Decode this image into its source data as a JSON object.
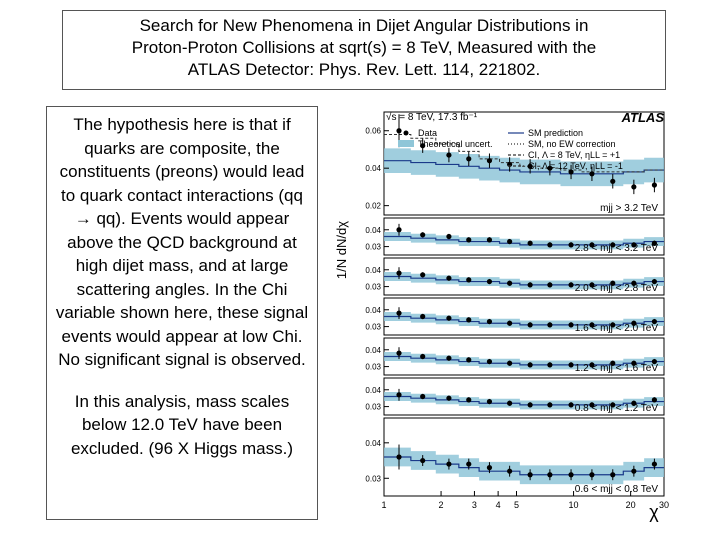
{
  "title": {
    "line1": "Search for New Phenomena in Dijet Angular Distributions in",
    "line2": "Proton-Proton Collisions at sqrt(s) = 8 TeV, Measured with the",
    "line3": "ATLAS Detector:  Phys. Rev. Lett. 114, 221802."
  },
  "description": {
    "paragraph1": "The hypothesis here is that if quarks are composite, the constituents (preons) would lead to quark contact interactions (qq → qq). Events would appear above the QCD background at high dijet mass, and at large scattering angles.  In the Chi variable shown here, these signal events would appear at low Chi. No significant signal is observed.",
    "paragraph2": "In this analysis, mass scales below 12.0 TeV have been excluded. (96 X Higgs mass.)"
  },
  "chart_data": {
    "type": "scatter",
    "ylabel": "1/N dN/dχ",
    "xlabel": "χ",
    "header": "√s = 8 TeV, 17.3 fb⁻¹",
    "experiment": "ATLAS",
    "x_ticks": [
      "1",
      "2",
      "3",
      "4",
      "5",
      "10",
      "20",
      "30"
    ],
    "x": [
      1.2,
      1.6,
      2.2,
      2.8,
      3.6,
      4.6,
      5.9,
      7.5,
      9.7,
      12.5,
      16.1,
      20.8,
      26.7
    ],
    "legend": [
      {
        "key": "data",
        "label": "Data"
      },
      {
        "key": "theory_unc",
        "label": "Theoretical uncert."
      },
      {
        "key": "sm_prediction",
        "label": "SM prediction"
      },
      {
        "key": "sm_no_ew",
        "label": "SM, no EW correction"
      },
      {
        "key": "ci_8_plus",
        "label": "CI, Λ = 8 TeV, ηLL = +1"
      },
      {
        "key": "ci_12_minus",
        "label": "CI, Λ = 12 TeV, ηLL = -1"
      }
    ],
    "panels": [
      {
        "label": "mjj > 3.2 TeV",
        "y_ticks": [
          "0.02",
          "0.04",
          "0.06"
        ],
        "ylim": [
          0.015,
          0.07
        ],
        "data": [
          0.06,
          0.052,
          0.047,
          0.045,
          0.044,
          0.042,
          0.041,
          0.04,
          0.038,
          0.037,
          0.033,
          0.03,
          0.031
        ],
        "prediction": [
          0.044,
          0.043,
          0.042,
          0.041,
          0.04,
          0.039,
          0.038,
          0.038,
          0.037,
          0.037,
          0.037,
          0.038,
          0.039
        ],
        "ci": [
          0.058,
          0.056,
          0.053,
          0.049,
          0.045,
          0.043,
          0.041,
          0.04,
          0.039,
          0.038,
          0.038,
          0.038,
          0.039
        ]
      },
      {
        "label": "2.8 < mjj < 3.2 TeV",
        "y_ticks": [
          "0.03",
          "0.04"
        ],
        "ylim": [
          0.025,
          0.047
        ],
        "data": [
          0.04,
          0.037,
          0.036,
          0.034,
          0.034,
          0.033,
          0.032,
          0.031,
          0.031,
          0.031,
          0.031,
          0.031,
          0.032
        ],
        "prediction": [
          0.036,
          0.035,
          0.034,
          0.033,
          0.033,
          0.032,
          0.031,
          0.031,
          0.031,
          0.031,
          0.031,
          0.032,
          0.033
        ]
      },
      {
        "label": "2.0 < mjj < 2.8 TeV",
        "y_ticks": [
          "0.03",
          "0.04"
        ],
        "ylim": [
          0.025,
          0.047
        ],
        "data": [
          0.038,
          0.037,
          0.035,
          0.034,
          0.033,
          0.032,
          0.031,
          0.031,
          0.031,
          0.031,
          0.032,
          0.032,
          0.033
        ],
        "prediction": [
          0.036,
          0.035,
          0.034,
          0.033,
          0.033,
          0.032,
          0.031,
          0.031,
          0.031,
          0.031,
          0.031,
          0.032,
          0.033
        ]
      },
      {
        "label": "1.6 < mjj < 2.0 TeV",
        "y_ticks": [
          "0.03",
          "0.04"
        ],
        "ylim": [
          0.025,
          0.047
        ],
        "data": [
          0.038,
          0.036,
          0.035,
          0.034,
          0.033,
          0.032,
          0.031,
          0.031,
          0.031,
          0.031,
          0.031,
          0.032,
          0.033
        ],
        "prediction": [
          0.036,
          0.035,
          0.034,
          0.033,
          0.032,
          0.032,
          0.031,
          0.031,
          0.031,
          0.031,
          0.031,
          0.032,
          0.033
        ]
      },
      {
        "label": "1.2 < mjj < 1.6 TeV",
        "y_ticks": [
          "0.03",
          "0.04"
        ],
        "ylim": [
          0.025,
          0.047
        ],
        "data": [
          0.038,
          0.036,
          0.035,
          0.034,
          0.033,
          0.032,
          0.031,
          0.031,
          0.031,
          0.031,
          0.032,
          0.032,
          0.033
        ],
        "prediction": [
          0.036,
          0.035,
          0.034,
          0.033,
          0.032,
          0.032,
          0.031,
          0.031,
          0.031,
          0.031,
          0.031,
          0.032,
          0.033
        ]
      },
      {
        "label": "0.8 < mjj < 1.2 TeV",
        "y_ticks": [
          "0.03",
          "0.04"
        ],
        "ylim": [
          0.025,
          0.047
        ],
        "data": [
          0.037,
          0.036,
          0.035,
          0.034,
          0.033,
          0.032,
          0.031,
          0.031,
          0.031,
          0.031,
          0.031,
          0.032,
          0.034
        ],
        "prediction": [
          0.036,
          0.035,
          0.034,
          0.033,
          0.032,
          0.032,
          0.031,
          0.031,
          0.031,
          0.031,
          0.031,
          0.032,
          0.033
        ]
      },
      {
        "label": "0.6 < mjj < 0.8 TeV",
        "y_ticks": [
          "0.03",
          "0.04"
        ],
        "ylim": [
          0.025,
          0.047
        ],
        "data": [
          0.036,
          0.035,
          0.034,
          0.034,
          0.033,
          0.032,
          0.031,
          0.031,
          0.031,
          0.031,
          0.031,
          0.032,
          0.034
        ],
        "prediction": [
          0.036,
          0.035,
          0.034,
          0.033,
          0.032,
          0.032,
          0.031,
          0.031,
          0.031,
          0.031,
          0.031,
          0.032,
          0.033
        ]
      }
    ]
  },
  "colors": {
    "band": "#8fc6d8",
    "data": "#000000",
    "prediction": "#1a3a8a",
    "ci": "#333333"
  }
}
